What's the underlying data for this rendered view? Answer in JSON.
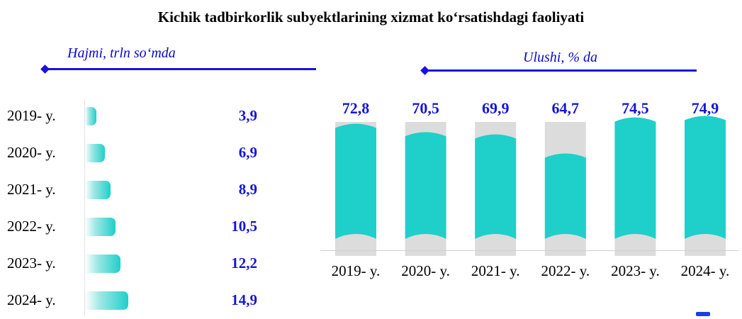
{
  "title": "Kichik tadbirkorlik subyektlarining xizmat ko‘rsatishdagi faoliyati",
  "chart_data": [
    {
      "type": "bar",
      "orientation": "horizontal",
      "title": "Hajmi, trln so‘mda",
      "categories": [
        "2019- y.",
        "2020- y.",
        "2021- y.",
        "2022- y.",
        "2023- y.",
        "2024- y."
      ],
      "values": [
        3.9,
        6.9,
        8.9,
        10.5,
        12.2,
        14.9
      ],
      "value_labels": [
        "3,9",
        "6,9",
        "8,9",
        "10,5",
        "12,2",
        "14,9"
      ],
      "bar_color": "#1fcfc9",
      "label_color": "#1616d4"
    },
    {
      "type": "bar",
      "orientation": "vertical",
      "title": "Ulushi, % da",
      "categories": [
        "2019- y.",
        "2020- y.",
        "2021- y.",
        "2022- y.",
        "2023- y.",
        "2024- y."
      ],
      "values": [
        72.8,
        70.5,
        69.9,
        64.7,
        74.5,
        74.9
      ],
      "value_labels": [
        "72,8",
        "70,5",
        "69,9",
        "64,7",
        "74,5",
        "74,9"
      ],
      "bar_color": "#1fcfc9",
      "background_bar_color": "#dcdcdc",
      "label_color": "#1616d4"
    }
  ]
}
